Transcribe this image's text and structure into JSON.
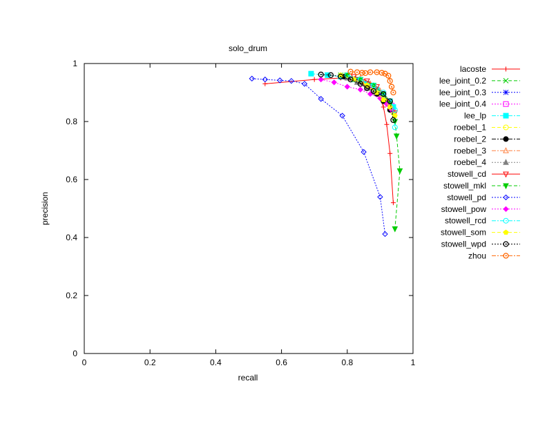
{
  "chart_data": {
    "type": "line",
    "title": "solo_drum",
    "xlabel": "recall",
    "ylabel": "precision",
    "xlim": [
      0,
      1
    ],
    "ylim": [
      0,
      1
    ],
    "xticks": [
      "0",
      "0.2",
      "0.4",
      "0.6",
      "0.8",
      "1"
    ],
    "yticks": [
      "0",
      "0.2",
      "0.4",
      "0.6",
      "0.8",
      "1"
    ],
    "grid": false,
    "legend_position": "right",
    "series": [
      {
        "name": "lacoste",
        "color": "#ff0000",
        "marker": "plus",
        "dash": "solid",
        "x": [
          0.55,
          0.7,
          0.78,
          0.85,
          0.88,
          0.9,
          0.91,
          0.92,
          0.93,
          0.94
        ],
        "y": [
          0.93,
          0.945,
          0.95,
          0.93,
          0.91,
          0.88,
          0.85,
          0.79,
          0.69,
          0.52
        ]
      },
      {
        "name": "lee_joint_0.2",
        "color": "#00cc00",
        "marker": "x",
        "dash": "dash",
        "x": [
          0.78,
          0.82,
          0.86,
          0.89,
          0.92
        ],
        "y": [
          0.96,
          0.95,
          0.93,
          0.9,
          0.87
        ]
      },
      {
        "name": "lee_joint_0.3",
        "color": "#0000ff",
        "marker": "star",
        "dash": "dot",
        "x": [
          0.79,
          0.83,
          0.87,
          0.9,
          0.93
        ],
        "y": [
          0.955,
          0.945,
          0.925,
          0.895,
          0.86
        ]
      },
      {
        "name": "lee_joint_0.4",
        "color": "#ff00ff",
        "marker": "square-open",
        "dash": "dot",
        "x": [
          0.8,
          0.84,
          0.88,
          0.91,
          0.935
        ],
        "y": [
          0.955,
          0.94,
          0.92,
          0.89,
          0.855
        ]
      },
      {
        "name": "lee_lp",
        "color": "#00ffff",
        "marker": "square",
        "dash": "dashdot",
        "x": [
          0.69,
          0.74,
          0.78,
          0.82,
          0.86,
          0.89,
          0.91,
          0.93,
          0.94
        ],
        "y": [
          0.965,
          0.96,
          0.955,
          0.945,
          0.93,
          0.91,
          0.89,
          0.87,
          0.85
        ]
      },
      {
        "name": "roebel_1",
        "color": "#ffff00",
        "marker": "circle-open",
        "dash": "dash",
        "x": [
          0.8,
          0.84,
          0.87,
          0.9,
          0.92,
          0.94
        ],
        "y": [
          0.955,
          0.94,
          0.92,
          0.895,
          0.865,
          0.83
        ]
      },
      {
        "name": "roebel_2",
        "color": "#000000",
        "marker": "circle",
        "dash": "dashdot",
        "x": [
          0.79,
          0.83,
          0.86,
          0.89,
          0.91,
          0.93
        ],
        "y": [
          0.955,
          0.94,
          0.92,
          0.895,
          0.87,
          0.84
        ]
      },
      {
        "name": "roebel_3",
        "color": "#ff8040",
        "marker": "triangle-open",
        "dash": "dashdot",
        "x": [
          0.84,
          0.87,
          0.9,
          0.92,
          0.94
        ],
        "y": [
          0.95,
          0.93,
          0.905,
          0.875,
          0.84
        ]
      },
      {
        "name": "roebel_4",
        "color": "#808080",
        "marker": "triangle",
        "dash": "dot",
        "x": [
          0.8,
          0.83,
          0.86,
          0.88
        ],
        "y": [
          0.95,
          0.935,
          0.915,
          0.9
        ]
      },
      {
        "name": "stowell_cd",
        "color": "#ff0000",
        "marker": "triangle-down-open",
        "dash": "solid",
        "x": [
          0.82,
          0.86,
          0.89,
          0.91,
          0.93,
          0.945
        ],
        "y": [
          0.955,
          0.94,
          0.92,
          0.895,
          0.86,
          0.83
        ]
      },
      {
        "name": "stowell_mkl",
        "color": "#00cc00",
        "marker": "triangle-down",
        "dash": "dash",
        "x": [
          0.8,
          0.84,
          0.88,
          0.91,
          0.93,
          0.945,
          0.95,
          0.96,
          0.945
        ],
        "y": [
          0.96,
          0.945,
          0.925,
          0.895,
          0.86,
          0.8,
          0.75,
          0.63,
          0.43
        ]
      },
      {
        "name": "stowell_pd",
        "color": "#0000ff",
        "marker": "diamond-open",
        "dash": "dot",
        "x": [
          0.51,
          0.55,
          0.595,
          0.63,
          0.67,
          0.72,
          0.785,
          0.85,
          0.9,
          0.915
        ],
        "y": [
          0.948,
          0.945,
          0.942,
          0.94,
          0.93,
          0.878,
          0.82,
          0.695,
          0.54,
          0.412
        ]
      },
      {
        "name": "stowell_pow",
        "color": "#ff00ff",
        "marker": "diamond",
        "dash": "dot",
        "x": [
          0.72,
          0.76,
          0.8,
          0.84,
          0.87,
          0.9,
          0.92,
          0.935
        ],
        "y": [
          0.945,
          0.935,
          0.92,
          0.91,
          0.895,
          0.88,
          0.86,
          0.84
        ]
      },
      {
        "name": "stowell_rcd",
        "color": "#00ffff",
        "marker": "circle-open",
        "dash": "dashdot",
        "x": [
          0.8,
          0.84,
          0.88,
          0.91,
          0.93,
          0.945,
          0.945
        ],
        "y": [
          0.96,
          0.945,
          0.925,
          0.9,
          0.87,
          0.84,
          0.78
        ]
      },
      {
        "name": "stowell_som",
        "color": "#ffff00",
        "marker": "pentagon",
        "dash": "dash",
        "x": [
          0.78,
          0.82,
          0.86,
          0.89,
          0.91,
          0.93,
          0.945
        ],
        "y": [
          0.96,
          0.945,
          0.925,
          0.9,
          0.875,
          0.85,
          0.82
        ]
      },
      {
        "name": "stowell_wpd",
        "color": "#000000",
        "marker": "circle-open-dot",
        "dash": "dot",
        "x": [
          0.72,
          0.75,
          0.78,
          0.81,
          0.84,
          0.86,
          0.88,
          0.91,
          0.93,
          0.94
        ],
        "y": [
          0.962,
          0.96,
          0.955,
          0.945,
          0.93,
          0.915,
          0.905,
          0.895,
          0.87,
          0.805
        ]
      },
      {
        "name": "zhou",
        "color": "#ff6600",
        "marker": "circle-open-dot",
        "dash": "dashdot",
        "x": [
          0.81,
          0.83,
          0.845,
          0.855,
          0.87,
          0.89,
          0.905,
          0.915,
          0.925,
          0.93,
          0.935,
          0.94
        ],
        "y": [
          0.972,
          0.97,
          0.968,
          0.967,
          0.97,
          0.97,
          0.968,
          0.965,
          0.958,
          0.94,
          0.92,
          0.9
        ]
      }
    ]
  }
}
